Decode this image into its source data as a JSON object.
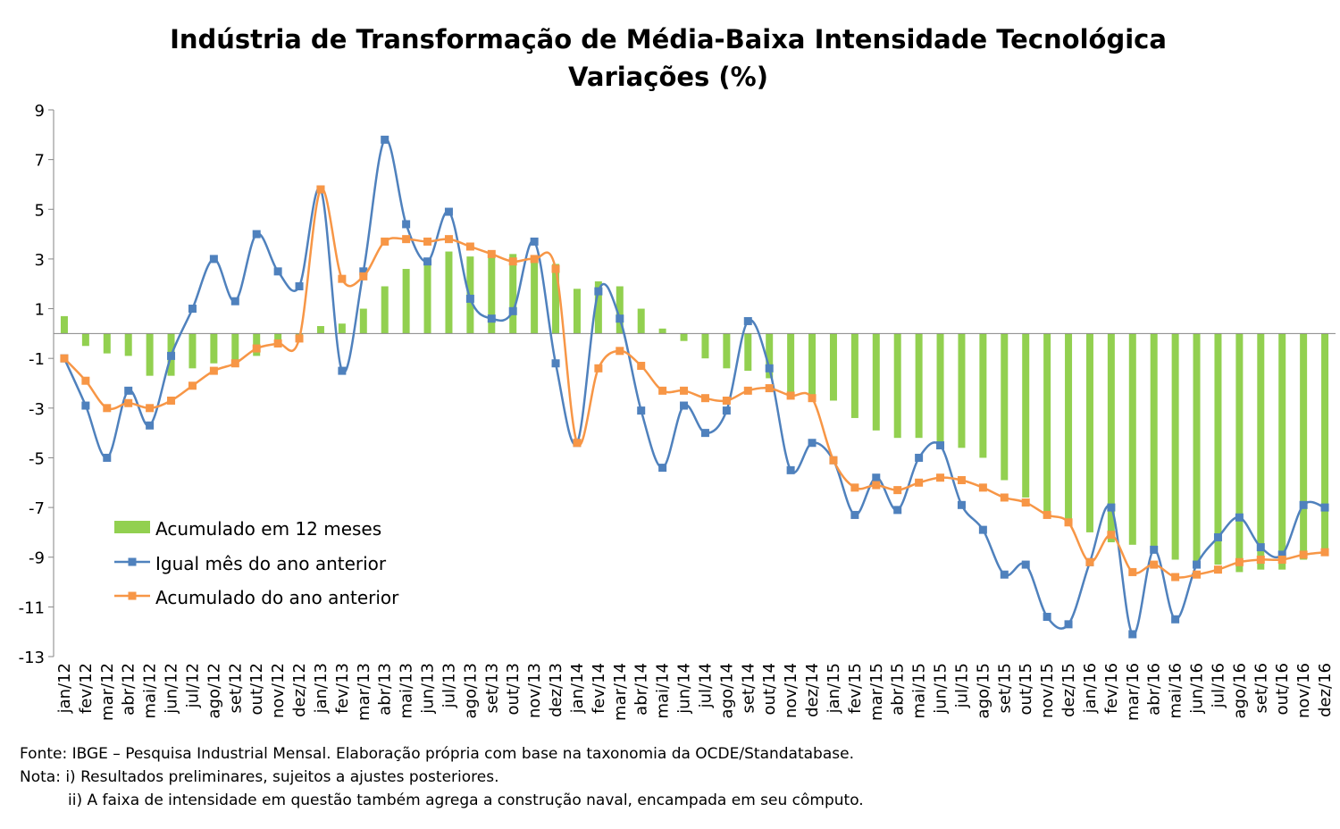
{
  "chart_data": {
    "type": "line",
    "title": "Indústria de Transformação de Média-Baixa Intensidade Tecnológica",
    "subtitle": "Variações (%)",
    "xlabel": "",
    "ylabel": "",
    "ylim": [
      -13,
      9
    ],
    "yticks": [
      9,
      7,
      5,
      3,
      1,
      -1,
      -3,
      -5,
      -7,
      -9,
      -11,
      -13
    ],
    "grid": false,
    "legend_position": "left",
    "categories": [
      "jan/12",
      "fev/12",
      "mar/12",
      "abr/12",
      "mai/12",
      "jun/12",
      "jul/12",
      "ago/12",
      "set/12",
      "out/12",
      "nov/12",
      "dez/12",
      "jan/13",
      "fev/13",
      "mar/13",
      "abr/13",
      "mai/13",
      "jun/13",
      "jul/13",
      "ago/13",
      "set/13",
      "out/13",
      "nov/13",
      "dez/13",
      "jan/14",
      "fev/14",
      "mar/14",
      "abr/14",
      "mai/14",
      "jun/14",
      "jul/14",
      "ago/14",
      "set/14",
      "out/14",
      "nov/14",
      "dez/14",
      "jan/15",
      "fev/15",
      "mar/15",
      "abr/15",
      "mai/15",
      "jun/15",
      "jul/15",
      "ago/15",
      "set/15",
      "out/15",
      "nov/15",
      "dez/15",
      "jan/16",
      "fev/16",
      "mar/16",
      "abr/16",
      "mai/16",
      "jun/16",
      "jul/16",
      "ago/16",
      "set/16",
      "out/16",
      "nov/16",
      "dez/16"
    ],
    "series": [
      {
        "name": "Acumulado em 12 meses",
        "kind": "bar",
        "color": "#92d050",
        "values": [
          0.7,
          -0.5,
          -0.8,
          -0.9,
          -1.7,
          -1.7,
          -1.4,
          -1.2,
          -1.2,
          -0.9,
          -0.5,
          -0.2,
          0.3,
          0.4,
          1.0,
          1.9,
          2.6,
          2.9,
          3.3,
          3.1,
          3.3,
          3.2,
          3.1,
          2.8,
          1.8,
          2.1,
          1.9,
          1.0,
          0.2,
          -0.3,
          -1.0,
          -1.4,
          -1.5,
          -1.8,
          -2.4,
          -2.6,
          -2.7,
          -3.4,
          -3.9,
          -4.2,
          -4.2,
          -4.4,
          -4.6,
          -5.0,
          -5.9,
          -6.6,
          -7.3,
          -7.6,
          -8.0,
          -8.4,
          -8.5,
          -8.7,
          -9.1,
          -9.2,
          -9.3,
          -9.6,
          -9.5,
          -9.5,
          -9.1,
          -8.8
        ]
      },
      {
        "name": "Igual mês do ano anterior",
        "kind": "line",
        "color": "#4f81bd",
        "values": [
          -1.0,
          -2.9,
          -5.0,
          -2.3,
          -3.7,
          -0.9,
          1.0,
          3.0,
          1.3,
          4.0,
          2.5,
          1.9,
          5.8,
          -1.5,
          2.5,
          7.8,
          4.4,
          2.9,
          4.9,
          1.4,
          0.6,
          0.9,
          3.7,
          -1.2,
          -4.4,
          1.7,
          0.6,
          -3.1,
          -5.4,
          -2.9,
          -4.0,
          -3.1,
          0.5,
          -1.4,
          -5.5,
          -4.4,
          -5.1,
          -7.3,
          -5.8,
          -7.1,
          -5.0,
          -4.5,
          -6.9,
          -7.9,
          -9.7,
          -9.3,
          -11.4,
          -11.7,
          -9.2,
          -7.0,
          -12.1,
          -8.7,
          -11.5,
          -9.3,
          -8.2,
          -7.4,
          -8.6,
          -8.9,
          -6.9,
          -7.0
        ]
      },
      {
        "name": "Acumulado do ano anterior",
        "kind": "line",
        "color": "#f79646",
        "values": [
          -1.0,
          -1.9,
          -3.0,
          -2.8,
          -3.0,
          -2.7,
          -2.1,
          -1.5,
          -1.2,
          -0.6,
          -0.4,
          -0.2,
          5.8,
          2.2,
          2.3,
          3.7,
          3.8,
          3.7,
          3.8,
          3.5,
          3.2,
          2.9,
          3.0,
          2.6,
          -4.4,
          -1.4,
          -0.7,
          -1.3,
          -2.3,
          -2.3,
          -2.6,
          -2.7,
          -2.3,
          -2.2,
          -2.5,
          -2.6,
          -5.1,
          -6.2,
          -6.1,
          -6.3,
          -6.0,
          -5.8,
          -5.9,
          -6.2,
          -6.6,
          -6.8,
          -7.3,
          -7.6,
          -9.2,
          -8.1,
          -9.6,
          -9.3,
          -9.8,
          -9.7,
          -9.5,
          -9.2,
          -9.1,
          -9.1,
          -8.9,
          -8.8
        ]
      }
    ],
    "footnotes": [
      "Fonte: IBGE – Pesquisa Industrial Mensal. Elaboração própria com base na taxonomia da OCDE/Standatabase.",
      "Nota: i) Resultados preliminares, sujeitos a ajustes posteriores.",
      "ii) A faixa de intensidade em questão também agrega a construção naval, encampada em seu cômputo."
    ]
  }
}
